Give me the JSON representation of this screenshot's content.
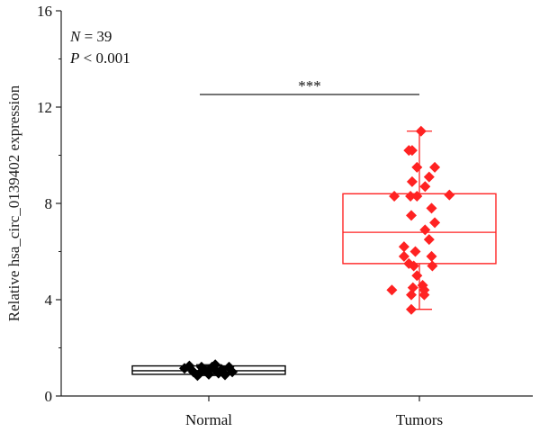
{
  "chart_data": {
    "type": "box",
    "ylabel": "Relative hsa_circ_0139402 expression",
    "xlabel": "",
    "ylim": [
      0,
      16
    ],
    "yticks": [
      "0",
      "4",
      "8",
      "12",
      "16"
    ],
    "categories": [
      "Normal",
      "Tumors"
    ],
    "annotations": {
      "n_label": "N",
      "n_value": " = 39",
      "p_label": "P",
      "p_value": " < 0.001",
      "significance": "***"
    },
    "groups": [
      {
        "name": "Normal",
        "color": "#000000",
        "box": {
          "q1": 0.9,
          "median": 1.05,
          "q3": 1.25,
          "whisker_low": 0.85,
          "whisker_high": 1.3
        },
        "points": [
          {
            "x": -0.3,
            "y": 1.15
          },
          {
            "x": -0.24,
            "y": 1.25
          },
          {
            "x": -0.19,
            "y": 1.0
          },
          {
            "x": -0.14,
            "y": 0.85
          },
          {
            "x": -0.09,
            "y": 1.2
          },
          {
            "x": -0.04,
            "y": 1.05
          },
          {
            "x": 0.0,
            "y": 0.9
          },
          {
            "x": 0.04,
            "y": 1.2
          },
          {
            "x": 0.08,
            "y": 1.3
          },
          {
            "x": 0.12,
            "y": 0.95
          },
          {
            "x": 0.16,
            "y": 1.1
          },
          {
            "x": 0.2,
            "y": 0.88
          },
          {
            "x": 0.25,
            "y": 1.2
          },
          {
            "x": 0.29,
            "y": 1.0
          },
          {
            "x": -0.11,
            "y": 0.95
          },
          {
            "x": 0.09,
            "y": 1.05
          }
        ]
      },
      {
        "name": "Tumors",
        "color": "#ff2222",
        "box": {
          "q1": 5.5,
          "median": 6.8,
          "q3": 8.4,
          "whisker_low": 3.6,
          "whisker_high": 11.0
        },
        "points": [
          {
            "x": 0.02,
            "y": 11.0
          },
          {
            "x": -0.13,
            "y": 10.2
          },
          {
            "x": -0.09,
            "y": 10.2
          },
          {
            "x": 0.19,
            "y": 9.5
          },
          {
            "x": -0.03,
            "y": 9.5
          },
          {
            "x": 0.12,
            "y": 9.1
          },
          {
            "x": -0.09,
            "y": 8.9
          },
          {
            "x": 0.07,
            "y": 8.7
          },
          {
            "x": -0.31,
            "y": 8.3
          },
          {
            "x": 0.37,
            "y": 8.35
          },
          {
            "x": -0.11,
            "y": 8.3
          },
          {
            "x": -0.03,
            "y": 8.3
          },
          {
            "x": 0.15,
            "y": 7.8
          },
          {
            "x": -0.1,
            "y": 7.5
          },
          {
            "x": 0.19,
            "y": 7.2
          },
          {
            "x": 0.07,
            "y": 6.9
          },
          {
            "x": 0.12,
            "y": 6.5
          },
          {
            "x": -0.19,
            "y": 6.2
          },
          {
            "x": -0.05,
            "y": 6.0
          },
          {
            "x": -0.19,
            "y": 5.8
          },
          {
            "x": 0.15,
            "y": 5.8
          },
          {
            "x": -0.13,
            "y": 5.5
          },
          {
            "x": -0.07,
            "y": 5.4
          },
          {
            "x": 0.16,
            "y": 5.4
          },
          {
            "x": -0.03,
            "y": 5.0
          },
          {
            "x": 0.04,
            "y": 4.6
          },
          {
            "x": -0.08,
            "y": 4.5
          },
          {
            "x": -0.34,
            "y": 4.4
          },
          {
            "x": 0.06,
            "y": 4.4
          },
          {
            "x": -0.1,
            "y": 4.2
          },
          {
            "x": 0.06,
            "y": 4.2
          },
          {
            "x": -0.1,
            "y": 3.6
          }
        ]
      }
    ]
  }
}
